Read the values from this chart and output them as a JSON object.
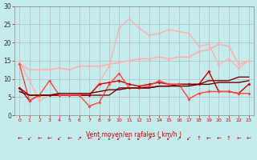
{
  "xlabel": "Vent moyen/en rafales ( km/h )",
  "xlim": [
    -0.5,
    23.5
  ],
  "ylim": [
    0,
    30
  ],
  "yticks": [
    0,
    5,
    10,
    15,
    20,
    25,
    30
  ],
  "xticks": [
    0,
    1,
    2,
    3,
    4,
    5,
    6,
    7,
    8,
    9,
    10,
    11,
    12,
    13,
    14,
    15,
    16,
    17,
    18,
    19,
    20,
    21,
    22,
    23
  ],
  "bg_color": "#c5ecec",
  "grid_color": "#b0b0b0",
  "arrow_symbols": [
    "←",
    "↙",
    "←",
    "←",
    "↙",
    "←",
    "↗",
    "←",
    "↙",
    "↓",
    "↙",
    "↓",
    "↙",
    "↗",
    "↗",
    "↙",
    "↗",
    "↙",
    "↑",
    "←",
    "←",
    "↑",
    "←",
    "←"
  ],
  "series": [
    {
      "y": [
        14.5,
        9.5,
        4.0,
        5.5,
        5.5,
        5.5,
        6.0,
        5.5,
        9.0,
        13.5,
        24.0,
        26.5,
        24.0,
        22.0,
        22.5,
        23.5,
        23.0,
        22.5,
        19.0,
        19.5,
        14.0,
        15.5,
        13.0,
        15.0
      ],
      "color": "#ffb0b0",
      "lw": 1.0,
      "marker": "D",
      "ms": 2.0
    },
    {
      "y": [
        14.0,
        12.5,
        12.5,
        12.5,
        13.0,
        12.5,
        13.5,
        13.5,
        13.5,
        14.0,
        14.5,
        15.0,
        15.5,
        15.5,
        16.0,
        15.5,
        16.0,
        16.0,
        17.5,
        18.0,
        19.5,
        19.0,
        14.0,
        15.0
      ],
      "color": "#ffb0b0",
      "lw": 1.2,
      "marker": "D",
      "ms": 2.0
    },
    {
      "y": [
        7.5,
        4.0,
        5.5,
        5.5,
        5.5,
        5.5,
        5.5,
        5.5,
        8.5,
        9.0,
        9.5,
        8.5,
        8.0,
        8.5,
        9.0,
        8.5,
        8.5,
        8.5,
        8.5,
        12.0,
        6.5,
        6.5,
        6.0,
        8.5
      ],
      "color": "#cc0000",
      "lw": 1.0,
      "marker": "D",
      "ms": 2.0
    },
    {
      "y": [
        7.5,
        5.5,
        5.5,
        5.5,
        5.5,
        5.5,
        5.5,
        5.5,
        5.5,
        5.5,
        7.5,
        7.5,
        7.5,
        7.5,
        8.0,
        8.0,
        8.5,
        8.5,
        8.5,
        9.5,
        9.5,
        9.5,
        10.5,
        10.5
      ],
      "color": "#880000",
      "lw": 1.0,
      "marker": null,
      "ms": 0
    },
    {
      "y": [
        14.0,
        4.0,
        5.5,
        9.5,
        5.5,
        5.5,
        5.5,
        2.5,
        3.5,
        8.5,
        11.5,
        7.5,
        7.5,
        8.0,
        9.5,
        8.5,
        8.5,
        4.5,
        6.0,
        6.5,
        6.5,
        6.5,
        6.0,
        6.0
      ],
      "color": "#ff4444",
      "lw": 1.0,
      "marker": "D",
      "ms": 2.0
    },
    {
      "y": [
        6.5,
        5.5,
        5.5,
        5.5,
        6.0,
        6.0,
        6.0,
        6.0,
        6.5,
        7.0,
        7.0,
        7.5,
        7.5,
        7.5,
        8.0,
        8.0,
        8.0,
        8.0,
        8.5,
        8.5,
        9.0,
        9.0,
        9.0,
        9.5
      ],
      "color": "#660000",
      "lw": 1.0,
      "marker": null,
      "ms": 0
    }
  ]
}
